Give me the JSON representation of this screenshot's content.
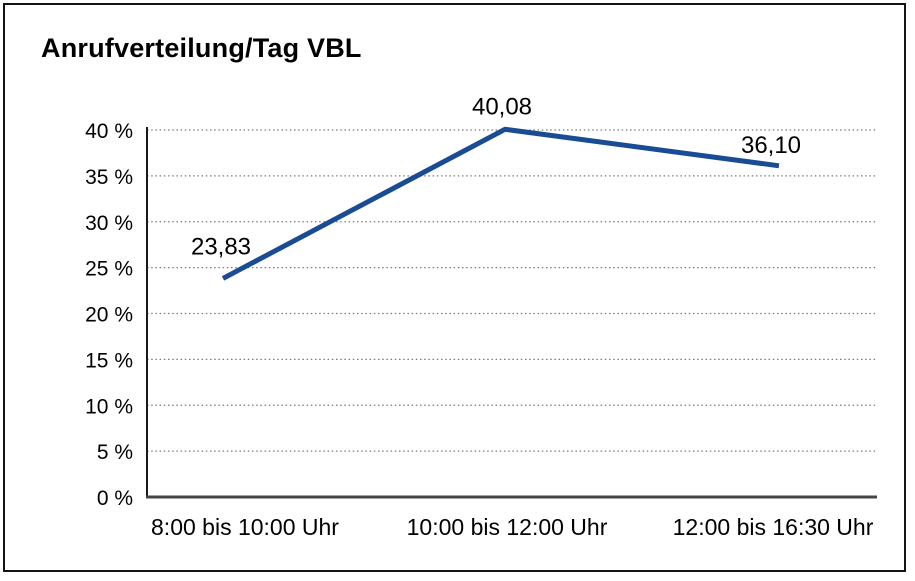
{
  "title": "Anrufverteilung/Tag VBL",
  "chart_data": {
    "type": "line",
    "title": "Anrufverteilung/Tag VBL",
    "categories": [
      "8:00 bis 10:00 Uhr",
      "10:00 bis 12:00 Uhr",
      "12:00 bis 16:30 Uhr"
    ],
    "values": [
      23.83,
      40.08,
      36.1
    ],
    "value_labels": [
      "23,83",
      "40,08",
      "36,10"
    ],
    "xlabel": "",
    "ylabel": "",
    "ylim": [
      0,
      40
    ],
    "ytick_step": 5,
    "ytick_suffix": " %",
    "ytick_labels": [
      "0 %",
      "5 %",
      "10 %",
      "15 %",
      "20 %",
      "25 %",
      "30 %",
      "35 %",
      "40 %"
    ],
    "grid": "horizontal-dotted",
    "legend": "none",
    "line_color": "#1a4c94"
  },
  "colors": {
    "line": "#1a4c94",
    "grid": "#7a7a7a",
    "y_axis": "#1a1a1a",
    "x_axis": "#454545",
    "border": "#141414",
    "text": "#000000",
    "background": "#ffffff"
  }
}
